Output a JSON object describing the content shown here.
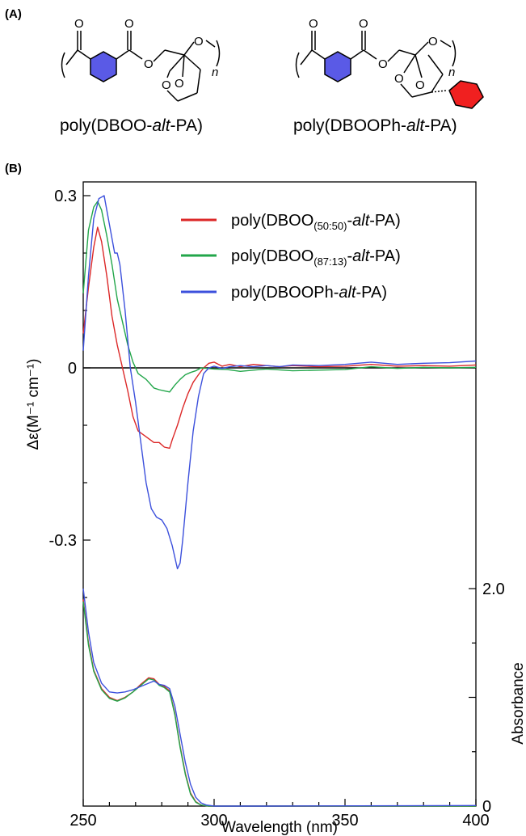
{
  "panel_a": {
    "label": "(A)",
    "structures": [
      {
        "name": "poly(DBOO-alt-PA)",
        "name_parts": [
          "poly(DBOO-",
          "alt",
          "-PA)"
        ],
        "ring_colors": [
          "#5a5ae6"
        ]
      },
      {
        "name": "poly(DBOOPh-alt-PA)",
        "name_parts": [
          "poly(DBOOPh-",
          "alt",
          "-PA)"
        ],
        "ring_colors": [
          "#5a5ae6",
          "#f02020"
        ]
      }
    ]
  },
  "panel_b": {
    "label": "(B)"
  },
  "chart_data": {
    "type": "line",
    "xlabel": "Wavelength (nm)",
    "ylabel_left": "Δε(M⁻¹ cm⁻¹)",
    "ylabel_right": "Absorbance",
    "xlim": [
      250,
      400
    ],
    "ylim_left": [
      -0.3,
      0.3
    ],
    "ylim_right": [
      0,
      2.0
    ],
    "x_ticks": [
      250,
      300,
      350,
      400
    ],
    "y_ticks_left": [
      "0.3",
      "0",
      "-0.3"
    ],
    "y_ticks_right": [
      "2.0",
      "0"
    ],
    "legend_position": "top-right",
    "legend": [
      {
        "parts": [
          "poly(DBOO",
          "(50:50)",
          "-",
          "alt",
          "-PA)"
        ],
        "color": "#dc2828"
      },
      {
        "parts": [
          "poly(DBOO",
          "(87:13)",
          "-",
          "alt",
          "-PA)"
        ],
        "color": "#22a64a"
      },
      {
        "parts": [
          "poly(DBOOPh-",
          "alt",
          "-PA)"
        ],
        "color": "#3c50dc"
      }
    ],
    "cd_series": [
      {
        "name": "poly(DBOO(50:50)-alt-PA)",
        "color": "#dc2828",
        "points": [
          [
            250,
            0.06
          ],
          [
            252,
            0.14
          ],
          [
            254,
            0.21
          ],
          [
            255.5,
            0.245
          ],
          [
            257,
            0.22
          ],
          [
            259,
            0.16
          ],
          [
            261,
            0.09
          ],
          [
            263,
            0.04
          ],
          [
            265,
            0.0
          ],
          [
            267,
            -0.04
          ],
          [
            269,
            -0.085
          ],
          [
            271,
            -0.11
          ],
          [
            274,
            -0.12
          ],
          [
            277,
            -0.13
          ],
          [
            279,
            -0.13
          ],
          [
            281,
            -0.138
          ],
          [
            283,
            -0.14
          ],
          [
            284,
            -0.125
          ],
          [
            286,
            -0.1
          ],
          [
            288,
            -0.07
          ],
          [
            290,
            -0.045
          ],
          [
            292,
            -0.025
          ],
          [
            294,
            -0.012
          ],
          [
            296,
            0.0
          ],
          [
            298,
            0.008
          ],
          [
            300,
            0.01
          ],
          [
            303,
            0.003
          ],
          [
            306,
            0.006
          ],
          [
            310,
            0.002
          ],
          [
            315,
            0.006
          ],
          [
            320,
            0.004
          ],
          [
            325,
            0.002
          ],
          [
            330,
            0.004
          ],
          [
            340,
            0.002
          ],
          [
            350,
            0.003
          ],
          [
            360,
            0.006
          ],
          [
            370,
            0.003
          ],
          [
            380,
            0.004
          ],
          [
            390,
            0.003
          ],
          [
            400,
            0.005
          ]
        ]
      },
      {
        "name": "poly(DBOO(87:13)-alt-PA)",
        "color": "#22a64a",
        "points": [
          [
            250,
            0.13
          ],
          [
            252,
            0.24
          ],
          [
            254,
            0.28
          ],
          [
            255.5,
            0.29
          ],
          [
            257,
            0.275
          ],
          [
            259,
            0.23
          ],
          [
            261,
            0.18
          ],
          [
            263,
            0.12
          ],
          [
            265,
            0.08
          ],
          [
            267,
            0.04
          ],
          [
            269,
            0.01
          ],
          [
            271,
            -0.01
          ],
          [
            274,
            -0.02
          ],
          [
            277,
            -0.035
          ],
          [
            279,
            -0.038
          ],
          [
            281,
            -0.04
          ],
          [
            283,
            -0.042
          ],
          [
            285,
            -0.03
          ],
          [
            287,
            -0.02
          ],
          [
            289,
            -0.012
          ],
          [
            291,
            -0.008
          ],
          [
            293,
            -0.005
          ],
          [
            295,
            0.0
          ],
          [
            300,
            -0.002
          ],
          [
            305,
            -0.003
          ],
          [
            310,
            -0.006
          ],
          [
            315,
            -0.004
          ],
          [
            320,
            -0.002
          ],
          [
            330,
            -0.005
          ],
          [
            340,
            -0.004
          ],
          [
            350,
            -0.003
          ],
          [
            360,
            0.002
          ],
          [
            370,
            -0.001
          ],
          [
            380,
            0.001
          ],
          [
            390,
            0.0
          ],
          [
            400,
            0.001
          ]
        ]
      },
      {
        "name": "poly(DBOOPh-alt-PA)",
        "color": "#3c50dc",
        "points": [
          [
            250,
            0.03
          ],
          [
            252,
            0.16
          ],
          [
            254,
            0.26
          ],
          [
            256,
            0.295
          ],
          [
            258,
            0.3
          ],
          [
            260,
            0.25
          ],
          [
            262,
            0.2
          ],
          [
            263,
            0.2
          ],
          [
            264,
            0.18
          ],
          [
            266,
            0.1
          ],
          [
            268,
            0.0
          ],
          [
            270,
            -0.06
          ],
          [
            272,
            -0.13
          ],
          [
            274,
            -0.2
          ],
          [
            276,
            -0.245
          ],
          [
            278,
            -0.26
          ],
          [
            280,
            -0.265
          ],
          [
            282,
            -0.28
          ],
          [
            284,
            -0.31
          ],
          [
            286,
            -0.35
          ],
          [
            287,
            -0.34
          ],
          [
            288,
            -0.3
          ],
          [
            290,
            -0.2
          ],
          [
            292,
            -0.11
          ],
          [
            294,
            -0.05
          ],
          [
            296,
            -0.01
          ],
          [
            298,
            0.0
          ],
          [
            300,
            0.003
          ],
          [
            303,
            -0.001
          ],
          [
            306,
            0.002
          ],
          [
            310,
            0.004
          ],
          [
            315,
            0.002
          ],
          [
            320,
            0.004
          ],
          [
            325,
            0.002
          ],
          [
            330,
            0.005
          ],
          [
            340,
            0.004
          ],
          [
            350,
            0.006
          ],
          [
            360,
            0.01
          ],
          [
            370,
            0.006
          ],
          [
            380,
            0.008
          ],
          [
            390,
            0.009
          ],
          [
            400,
            0.012
          ]
        ]
      }
    ],
    "abs_series": [
      {
        "name": "poly(DBOO(50:50)-alt-PA)",
        "color": "#dc2828",
        "points": [
          [
            250,
            1.9
          ],
          [
            252,
            1.5
          ],
          [
            254,
            1.25
          ],
          [
            257,
            1.08
          ],
          [
            260,
            1.0
          ],
          [
            263,
            0.97
          ],
          [
            266,
            1.0
          ],
          [
            269,
            1.05
          ],
          [
            272,
            1.12
          ],
          [
            275,
            1.18
          ],
          [
            277,
            1.17
          ],
          [
            279,
            1.12
          ],
          [
            281,
            1.1
          ],
          [
            283,
            1.06
          ],
          [
            285,
            0.85
          ],
          [
            287,
            0.55
          ],
          [
            289,
            0.3
          ],
          [
            291,
            0.12
          ],
          [
            293,
            0.04
          ],
          [
            295,
            0.01
          ],
          [
            298,
            0.0
          ],
          [
            320,
            0.0
          ],
          [
            400,
            0.0
          ]
        ]
      },
      {
        "name": "poly(DBOO(87:13)-alt-PA)",
        "color": "#22a64a",
        "points": [
          [
            250,
            1.88
          ],
          [
            252,
            1.48
          ],
          [
            254,
            1.24
          ],
          [
            257,
            1.07
          ],
          [
            260,
            0.99
          ],
          [
            263,
            0.965
          ],
          [
            266,
            0.995
          ],
          [
            269,
            1.05
          ],
          [
            272,
            1.11
          ],
          [
            275,
            1.17
          ],
          [
            277,
            1.16
          ],
          [
            279,
            1.11
          ],
          [
            281,
            1.09
          ],
          [
            283,
            1.05
          ],
          [
            285,
            0.84
          ],
          [
            287,
            0.54
          ],
          [
            289,
            0.29
          ],
          [
            291,
            0.11
          ],
          [
            293,
            0.035
          ],
          [
            295,
            0.01
          ],
          [
            298,
            0.0
          ],
          [
            320,
            0.0
          ],
          [
            400,
            0.0
          ]
        ]
      },
      {
        "name": "poly(DBOOPh-alt-PA)",
        "color": "#3c50dc",
        "points": [
          [
            250,
            2.0
          ],
          [
            252,
            1.6
          ],
          [
            254,
            1.32
          ],
          [
            257,
            1.13
          ],
          [
            260,
            1.05
          ],
          [
            263,
            1.04
          ],
          [
            266,
            1.05
          ],
          [
            269,
            1.07
          ],
          [
            272,
            1.1
          ],
          [
            275,
            1.13
          ],
          [
            277,
            1.15
          ],
          [
            279,
            1.12
          ],
          [
            281,
            1.11
          ],
          [
            283,
            1.08
          ],
          [
            285,
            0.92
          ],
          [
            287,
            0.66
          ],
          [
            289,
            0.4
          ],
          [
            291,
            0.2
          ],
          [
            293,
            0.08
          ],
          [
            295,
            0.03
          ],
          [
            297,
            0.01
          ],
          [
            300,
            0.0
          ],
          [
            320,
            0.0
          ],
          [
            400,
            0.005
          ]
        ]
      }
    ]
  }
}
